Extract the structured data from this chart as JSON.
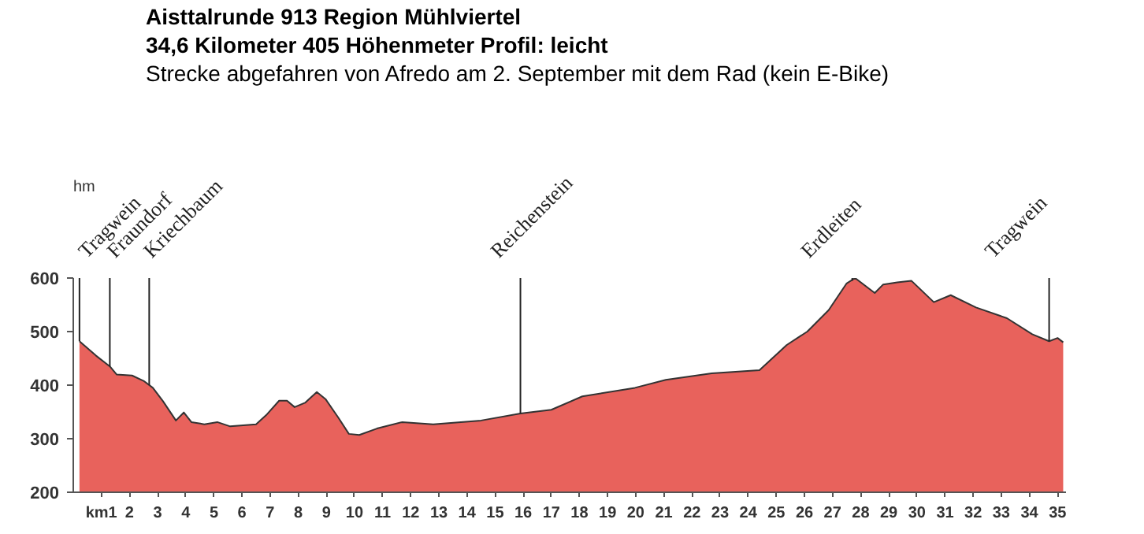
{
  "chart_data": {
    "type": "area",
    "title": "Aisttalrunde 913  Region Mühlviertel",
    "subtitle": "34,6 Kilometer 405 Höhenmeter  Profil: leicht",
    "ylabel": "hm",
    "annotations": [
      "Strecke abgefahren von Afredo am 2. September mit dem Rad (kein E-Bike)",
      {
        "text": "Tragwein",
        "x": 0.22,
        "y": 482
      },
      {
        "text": "Fraundorf",
        "x": 1.3,
        "y": 435
      },
      {
        "text": "Kriechbaum",
        "x": 2.7,
        "y": 400
      },
      {
        "text": "Reichenstein",
        "x": 15.9,
        "y": 347
      },
      {
        "text": "Erdleiten",
        "x": 27.7,
        "y": 595
      },
      {
        "text": "Tragwein",
        "x": 34.7,
        "y": 482
      }
    ],
    "x": [
      0.22,
      0.81,
      1.3,
      1.54,
      2.09,
      2.5,
      2.83,
      3.19,
      3.65,
      3.93,
      4.2,
      4.66,
      5.12,
      5.58,
      6.5,
      6.86,
      7.32,
      7.6,
      7.87,
      8.24,
      8.66,
      8.97,
      9.43,
      9.8,
      10.17,
      10.8,
      11.7,
      12.8,
      14.5,
      15.9,
      17.0,
      18.1,
      19.97,
      21.07,
      22.7,
      24.4,
      25.37,
      26.1,
      26.86,
      27.5,
      27.8,
      28.5,
      28.8,
      29.3,
      29.8,
      30.6,
      31.2,
      32.1,
      33.2,
      34.1,
      34.7,
      35.0,
      35.2
    ],
    "series": [
      {
        "color": "#e8625c",
        "values": [
          482,
          455,
          435,
          420,
          418,
          408,
          395,
          370,
          334,
          349,
          331,
          327,
          331,
          323,
          327,
          344,
          371,
          371,
          359,
          367,
          387,
          374,
          339,
          309,
          307,
          319,
          331,
          327,
          334,
          347,
          354,
          379,
          395,
          410,
          422,
          428,
          475,
          500,
          540,
          590,
          600,
          572,
          588,
          592,
          595,
          555,
          568,
          545,
          525,
          495,
          482,
          488,
          480
        ]
      }
    ],
    "xlim": [
      0,
      35.3
    ],
    "ylim": [
      200,
      600
    ],
    "xticks": [
      {
        "value": 1,
        "label": "km1"
      },
      2,
      3,
      4,
      5,
      6,
      7,
      8,
      9,
      10,
      11,
      12,
      13,
      14,
      15,
      16,
      17,
      18,
      19,
      20,
      21,
      22,
      23,
      24,
      25,
      26,
      27,
      28,
      29,
      30,
      31,
      32,
      33,
      34,
      35
    ],
    "yticks": [
      200,
      300,
      400,
      500,
      600
    ],
    "grid": false
  }
}
